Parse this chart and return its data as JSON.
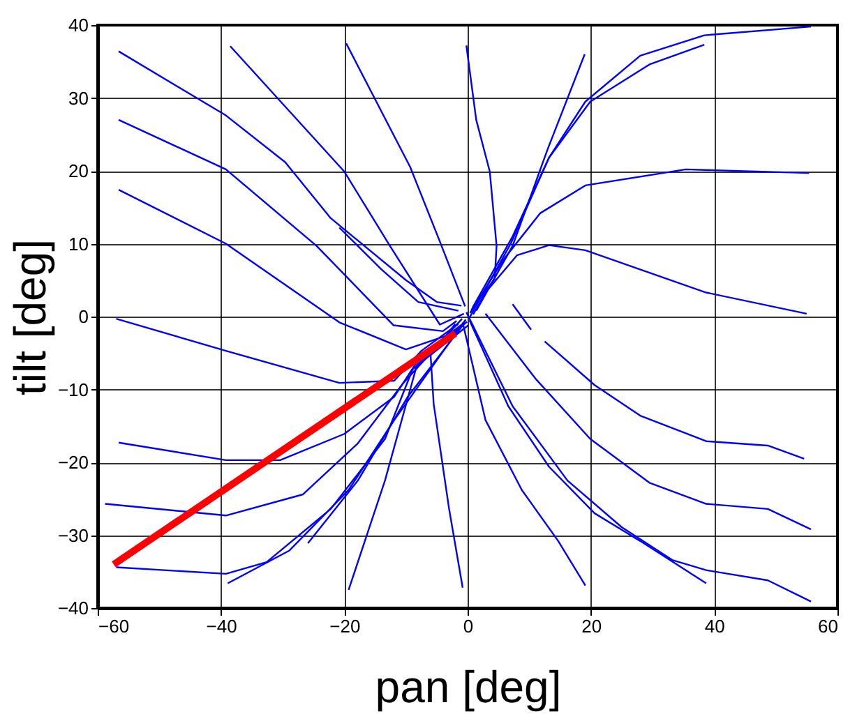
{
  "chart_data": {
    "type": "line",
    "xlabel": "pan [deg]",
    "ylabel": "tilt [deg]",
    "xlim": [
      -60,
      60
    ],
    "xticks": [
      -60,
      -40,
      -20,
      0,
      20,
      40,
      60
    ],
    "ylim": [
      -40,
      40
    ],
    "yticks": [
      -40,
      -30,
      -20,
      -10,
      0,
      10,
      20,
      30,
      40
    ],
    "grid": true,
    "marker": "none",
    "line_style": "solid",
    "series": [
      {
        "color": "#0000ff",
        "x": [
          -56.6,
          -39.2,
          -29.6,
          -22.2,
          -10,
          -5,
          -1
        ],
        "values": [
          36.4,
          27.6,
          21.2,
          13.5,
          5,
          2,
          1.5
        ]
      },
      {
        "color": "#0000ff",
        "x": [
          -56.6,
          -39.2,
          -24.5,
          -12,
          -4,
          -1.8
        ],
        "values": [
          27,
          20.2,
          9.7,
          -1.2,
          -2,
          -0.6
        ]
      },
      {
        "color": "#0000ff",
        "x": [
          -56.6,
          -39.2,
          -20.8,
          -10,
          -3,
          -1.2
        ],
        "values": [
          17.4,
          10,
          -0.8,
          -4.5,
          -2.5,
          -1.5
        ]
      },
      {
        "color": "#0000ff",
        "x": [
          -38.5,
          -20,
          -12.6,
          -4.5,
          -0.6
        ],
        "values": [
          37.1,
          19.9,
          9.7,
          -1.1,
          0.4
        ]
      },
      {
        "color": "#0000ff",
        "x": [
          -19.7,
          -9.3,
          -4.5,
          -0.4
        ],
        "values": [
          37.5,
          20.5,
          10.3,
          1.4
        ]
      },
      {
        "color": "#0000ff",
        "x": [
          -20.8,
          -14,
          -8,
          -1.5
        ],
        "values": [
          12.2,
          6.5,
          2,
          0.8
        ]
      },
      {
        "color": "#0000ff",
        "x": [
          -0.2,
          1.4,
          3.6,
          4.7,
          4.4,
          0.6
        ],
        "values": [
          37.2,
          27,
          19.9,
          9.7,
          5.2,
          0.9
        ]
      },
      {
        "color": "#0000ff",
        "x": [
          19,
          13,
          7.3,
          1.4
        ],
        "values": [
          36,
          23,
          9.7,
          0.8
        ]
      },
      {
        "color": "#0000ff",
        "x": [
          38.4,
          29.5,
          19.9,
          13.2,
          7.3,
          0.8
        ],
        "values": [
          37.3,
          34.6,
          29.5,
          21.8,
          11,
          1.2
        ]
      },
      {
        "color": "#0000ff",
        "x": [
          55.7,
          38.4,
          28,
          19.1,
          13.2,
          7,
          0.2
        ],
        "values": [
          39.8,
          38.6,
          35.8,
          29.5,
          21.8,
          10,
          -0.3
        ]
      },
      {
        "color": "#0000ff",
        "x": [
          55.4,
          35.4,
          19.1,
          11.8,
          5.8,
          0.4
        ],
        "values": [
          19.7,
          20.2,
          18,
          14.2,
          7.8,
          0.5
        ]
      },
      {
        "color": "#0000ff",
        "x": [
          55,
          38.7,
          19.1,
          13.2,
          8,
          2.9,
          0.9
        ],
        "values": [
          0.4,
          3.3,
          9.1,
          9.8,
          8.4,
          3.3,
          0.3
        ]
      },
      {
        "color": "#0000ff",
        "x": [
          7.3,
          10.3
        ],
        "values": [
          1.7,
          -1.8
        ]
      },
      {
        "color": "#0000ff",
        "x": [
          54.6,
          48.7,
          38.7,
          28,
          20.6,
          12.5
        ],
        "values": [
          -19.5,
          -17.7,
          -17.1,
          -13.6,
          -9.4,
          -3.4
        ]
      },
      {
        "color": "#0000ff",
        "x": [
          55.7,
          48.7,
          38.7,
          29.5,
          19.9,
          11,
          2.9
        ],
        "values": [
          -29.2,
          -26.4,
          -25.7,
          -22.8,
          -16.8,
          -8.5,
          0.4
        ]
      },
      {
        "color": "#0000ff",
        "x": [
          55.7,
          48.7,
          38.7,
          33.2,
          25,
          16.2,
          7.3,
          -0.2
        ],
        "values": [
          -39.1,
          -36.2,
          -34.8,
          -33.4,
          -28.9,
          -22.5,
          -12.3,
          0.6
        ]
      },
      {
        "color": "#0000ff",
        "x": [
          38.7,
          28,
          20.6,
          13.2,
          6.6,
          0.3
        ],
        "values": [
          -36.6,
          -30.8,
          -27,
          -20.6,
          -12.3,
          -0.5
        ]
      },
      {
        "color": "#0000ff",
        "x": [
          19.1,
          14.7,
          8.8,
          2.9,
          -0.8
        ],
        "values": [
          -36.9,
          -30.8,
          -23.8,
          -14.2,
          -0.8
        ]
      },
      {
        "color": "#0000ff",
        "x": [
          -0.8,
          -3,
          -5.5,
          -6,
          -2
        ],
        "values": [
          -37.2,
          -26.4,
          -12,
          -5.3,
          -1
        ]
      },
      {
        "color": "#0000ff",
        "x": [
          -57,
          -39.2,
          -20.8,
          -11.9,
          -7.5,
          -1.5
        ],
        "values": [
          -0.3,
          -4.7,
          -9.1,
          -8.8,
          -4.7,
          -1
        ]
      },
      {
        "color": "#0000ff",
        "x": [
          -56.6,
          -39.2,
          -30.4,
          -20,
          -11.9,
          -7.5,
          -0.5
        ],
        "values": [
          -17.3,
          -19.7,
          -19.7,
          -16.1,
          -11,
          -5.3,
          -0.8
        ]
      },
      {
        "color": "#0000ff",
        "x": [
          -58.8,
          -39.2,
          -26.7,
          -17.8,
          -10.4,
          -0.9
        ],
        "values": [
          -25.7,
          -27.3,
          -24.4,
          -17.4,
          -9.1,
          -0.3
        ]
      },
      {
        "color": "#0000ff",
        "x": [
          -57,
          -39.2,
          -32.6,
          -22.2,
          -13.4,
          -8.9,
          0.1
        ],
        "values": [
          -34.4,
          -35.3,
          -33.7,
          -26.4,
          -16.8,
          -7.2,
          -1.2
        ]
      },
      {
        "color": "#0000ff",
        "x": [
          -38.9,
          -28.9,
          -19.3,
          -11.9,
          -0.3
        ],
        "values": [
          -36.6,
          -32.1,
          -23.8,
          -14.2,
          -0.4
        ]
      },
      {
        "color": "#0000ff",
        "x": [
          -25.9,
          -17.8,
          -9.7,
          -0.7
        ],
        "values": [
          -31.1,
          -22.5,
          -11,
          -1.1
        ]
      },
      {
        "color": "#0000ff",
        "x": [
          -19.3,
          -13.4,
          -8.2,
          -0.1
        ],
        "values": [
          -37.5,
          -22.5,
          -6.6,
          -0.7
        ]
      },
      {
        "color": "#ff0000",
        "x": [
          -57.4,
          -2
        ],
        "values": [
          -34,
          -2.3
        ]
      }
    ]
  }
}
